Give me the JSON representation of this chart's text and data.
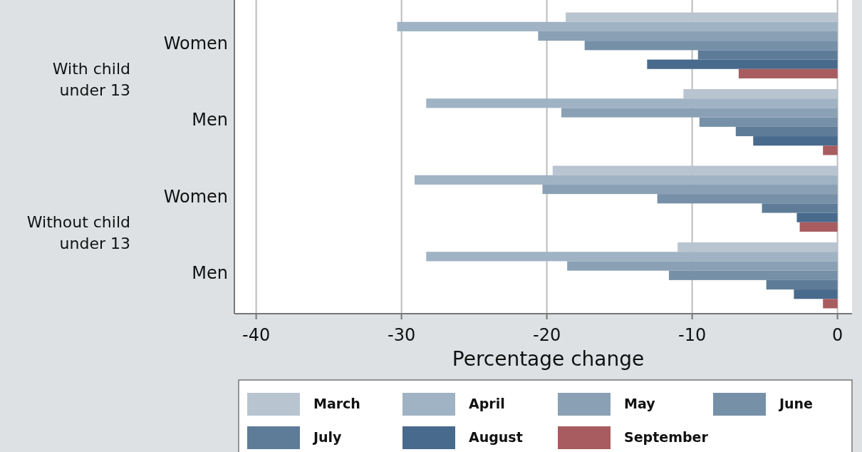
{
  "chart_data": {
    "type": "bar",
    "orientation": "horizontal",
    "xlabel": "Percentage change",
    "categories": [
      "Women",
      "Men",
      "Women",
      "Men"
    ],
    "annotations": [
      "With child under 13",
      "Without child under 13"
    ],
    "series": [
      {
        "name": "March",
        "color": "#b8c4d0",
        "values": [
          -18.7,
          -10.6,
          -19.6,
          -11.0
        ]
      },
      {
        "name": "April",
        "color": "#a0b3c4",
        "values": [
          -30.3,
          -28.3,
          -29.1,
          -28.3
        ]
      },
      {
        "name": "May",
        "color": "#8aa0b5",
        "values": [
          -20.6,
          -19.0,
          -20.3,
          -18.6
        ]
      },
      {
        "name": "June",
        "color": "#7690a8",
        "values": [
          -17.4,
          -9.5,
          -12.4,
          -11.6
        ]
      },
      {
        "name": "July",
        "color": "#5e7c98",
        "values": [
          -9.6,
          -7.0,
          -5.2,
          -4.9
        ]
      },
      {
        "name": "August",
        "color": "#486a8c",
        "values": [
          -13.1,
          -5.8,
          -2.8,
          -3.0
        ]
      },
      {
        "name": "September",
        "color": "#a85c60",
        "values": [
          -6.8,
          -1.0,
          -2.6,
          -1.0
        ]
      }
    ],
    "xlim": [
      -41.5,
      1
    ],
    "xticks": [
      -40,
      -30,
      -20,
      -10,
      0
    ],
    "grid": "x",
    "legend": "bottom"
  }
}
